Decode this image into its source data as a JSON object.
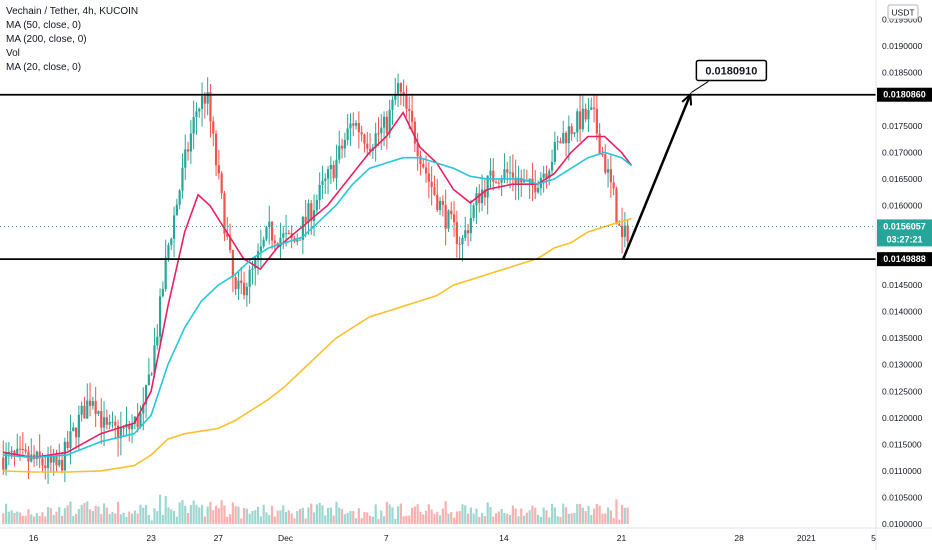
{
  "chart_data": {
    "type": "candlestick",
    "title": "Vechain / Tether, 4h, KUCOIN",
    "indicators": [
      "MA (50, close, 0)",
      "MA (200, close, 0)",
      "Vol",
      "MA (20, close, 0)"
    ],
    "currency": "USDT",
    "ylim": [
      0.01,
      0.01955
    ],
    "y_ticks": [
      "0.0195000",
      "0.0190000",
      "0.0185000",
      "0.0175000",
      "0.0170000",
      "0.0165000",
      "0.0160000",
      "0.0145000",
      "0.0140000",
      "0.0135000",
      "0.0130000",
      "0.0125000",
      "0.0120000",
      "0.0115000",
      "0.0110000",
      "0.0105000",
      "0.0100000"
    ],
    "x_ticks": [
      {
        "label": "16",
        "day": 0
      },
      {
        "label": "23",
        "day": 7
      },
      {
        "label": "27",
        "day": 11
      },
      {
        "label": "Dec",
        "day": 15
      },
      {
        "label": "7",
        "day": 21
      },
      {
        "label": "14",
        "day": 28
      },
      {
        "label": "21",
        "day": 35
      },
      {
        "label": "28",
        "day": 42
      },
      {
        "label": "2021",
        "day": 46
      },
      {
        "label": "5",
        "day": 50
      }
    ],
    "levels": [
      {
        "label": "0.0180860",
        "value": 0.018086
      },
      {
        "label": "0.0149888",
        "value": 0.0149888
      }
    ],
    "last_price": {
      "label": "0.0156057",
      "value": 0.0156057,
      "countdown": "03:27:21"
    },
    "projection": {
      "label": "0.0180910",
      "from_day": 35.1,
      "from_value": 0.0149888,
      "to_day": 39.1,
      "to_value": 0.018091
    },
    "price_path": [
      {
        "day": -1.8,
        "value": 0.01125
      },
      {
        "day": 0,
        "value": 0.0112
      },
      {
        "day": 1.5,
        "value": 0.01105
      },
      {
        "day": 2.7,
        "value": 0.01195
      },
      {
        "day": 3.5,
        "value": 0.01245
      },
      {
        "day": 4.3,
        "value": 0.01175
      },
      {
        "day": 5.5,
        "value": 0.01175
      },
      {
        "day": 6.5,
        "value": 0.01205
      },
      {
        "day": 7.3,
        "value": 0.0135
      },
      {
        "day": 8,
        "value": 0.0152
      },
      {
        "day": 9,
        "value": 0.0168
      },
      {
        "day": 9.7,
        "value": 0.0178
      },
      {
        "day": 10.3,
        "value": 0.0181
      },
      {
        "day": 11,
        "value": 0.0165
      },
      {
        "day": 12,
        "value": 0.0143
      },
      {
        "day": 13,
        "value": 0.0147
      },
      {
        "day": 14,
        "value": 0.0155
      },
      {
        "day": 15.5,
        "value": 0.0153
      },
      {
        "day": 17,
        "value": 0.0162
      },
      {
        "day": 18,
        "value": 0.0168
      },
      {
        "day": 19,
        "value": 0.0176
      },
      {
        "day": 20,
        "value": 0.0172
      },
      {
        "day": 21,
        "value": 0.0175
      },
      {
        "day": 21.7,
        "value": 0.0182
      },
      {
        "day": 22.5,
        "value": 0.0175
      },
      {
        "day": 23.5,
        "value": 0.0165
      },
      {
        "day": 24.5,
        "value": 0.0158
      },
      {
        "day": 25.5,
        "value": 0.0153
      },
      {
        "day": 26.5,
        "value": 0.0162
      },
      {
        "day": 27.5,
        "value": 0.0166
      },
      {
        "day": 28.5,
        "value": 0.0166
      },
      {
        "day": 29.5,
        "value": 0.0163
      },
      {
        "day": 30.5,
        "value": 0.0167
      },
      {
        "day": 31.5,
        "value": 0.0173
      },
      {
        "day": 32.5,
        "value": 0.0176
      },
      {
        "day": 33.3,
        "value": 0.0177
      },
      {
        "day": 34,
        "value": 0.0168
      },
      {
        "day": 34.5,
        "value": 0.0162
      },
      {
        "day": 35,
        "value": 0.0153
      },
      {
        "day": 35.5,
        "value": 0.0156
      }
    ],
    "ma_series": [
      {
        "name": "MA (20, close, 0)",
        "color": "#e91e63",
        "points": [
          [
            -1.8,
            0.01135
          ],
          [
            0,
            0.01125
          ],
          [
            2,
            0.01135
          ],
          [
            4,
            0.0117
          ],
          [
            6,
            0.0119
          ],
          [
            7,
            0.0125
          ],
          [
            8,
            0.0141
          ],
          [
            9,
            0.0155
          ],
          [
            9.8,
            0.0162
          ],
          [
            10.5,
            0.016
          ],
          [
            11.5,
            0.0155
          ],
          [
            12.5,
            0.015
          ],
          [
            13.5,
            0.0148
          ],
          [
            14.5,
            0.0152
          ],
          [
            16,
            0.0156
          ],
          [
            17.5,
            0.016
          ],
          [
            19,
            0.0166
          ],
          [
            20,
            0.017
          ],
          [
            21,
            0.0173
          ],
          [
            22,
            0.01775
          ],
          [
            23,
            0.0171
          ],
          [
            24,
            0.0168
          ],
          [
            25,
            0.0163
          ],
          [
            26,
            0.01605
          ],
          [
            27,
            0.0163
          ],
          [
            28.5,
            0.0164
          ],
          [
            30,
            0.0164
          ],
          [
            31,
            0.0166
          ],
          [
            32,
            0.017
          ],
          [
            33,
            0.0173
          ],
          [
            34,
            0.0173
          ],
          [
            35,
            0.017
          ],
          [
            35.6,
            0.01675
          ]
        ]
      },
      {
        "name": "MA (50, close, 0)",
        "color": "#26c6da",
        "points": [
          [
            -1.8,
            0.0113
          ],
          [
            0,
            0.01125
          ],
          [
            2,
            0.0113
          ],
          [
            4,
            0.01155
          ],
          [
            6,
            0.0117
          ],
          [
            7,
            0.01205
          ],
          [
            8,
            0.013
          ],
          [
            9,
            0.0137
          ],
          [
            10,
            0.0142
          ],
          [
            11,
            0.0145
          ],
          [
            12,
            0.0147
          ],
          [
            13,
            0.015
          ],
          [
            14,
            0.0152
          ],
          [
            15,
            0.0153
          ],
          [
            16,
            0.0154
          ],
          [
            17,
            0.0157
          ],
          [
            18,
            0.016
          ],
          [
            19,
            0.0164
          ],
          [
            20,
            0.0167
          ],
          [
            21,
            0.0168
          ],
          [
            22,
            0.0169
          ],
          [
            23,
            0.0169
          ],
          [
            24,
            0.0168
          ],
          [
            25,
            0.0167
          ],
          [
            26,
            0.01655
          ],
          [
            27,
            0.0165
          ],
          [
            28,
            0.0165
          ],
          [
            29,
            0.0165
          ],
          [
            30,
            0.0164
          ],
          [
            31,
            0.0165
          ],
          [
            32,
            0.0167
          ],
          [
            33,
            0.0169
          ],
          [
            34,
            0.017
          ],
          [
            35,
            0.0169
          ],
          [
            35.6,
            0.01675
          ]
        ]
      },
      {
        "name": "MA (200, close, 0)",
        "color": "#fbc02d",
        "points": [
          [
            -1.8,
            0.011
          ],
          [
            0,
            0.01098
          ],
          [
            2,
            0.01098
          ],
          [
            4,
            0.011
          ],
          [
            6,
            0.0111
          ],
          [
            7,
            0.0113
          ],
          [
            8,
            0.0116
          ],
          [
            9,
            0.0117
          ],
          [
            10,
            0.01175
          ],
          [
            11,
            0.0118
          ],
          [
            12,
            0.01195
          ],
          [
            13,
            0.01215
          ],
          [
            14,
            0.01235
          ],
          [
            15,
            0.0126
          ],
          [
            16,
            0.0129
          ],
          [
            17,
            0.0132
          ],
          [
            18,
            0.0135
          ],
          [
            19,
            0.0137
          ],
          [
            20,
            0.0139
          ],
          [
            21,
            0.014
          ],
          [
            22,
            0.0141
          ],
          [
            23,
            0.0142
          ],
          [
            24,
            0.0143
          ],
          [
            25,
            0.0145
          ],
          [
            26,
            0.0146
          ],
          [
            27,
            0.0147
          ],
          [
            28,
            0.0148
          ],
          [
            29,
            0.0149
          ],
          [
            30,
            0.015
          ],
          [
            31,
            0.0152
          ],
          [
            32,
            0.0153
          ],
          [
            33,
            0.0155
          ],
          [
            34,
            0.0156
          ],
          [
            35,
            0.0157
          ],
          [
            35.6,
            0.01575
          ]
        ]
      }
    ],
    "volume_scale_max": 0.0012,
    "grid": false
  }
}
